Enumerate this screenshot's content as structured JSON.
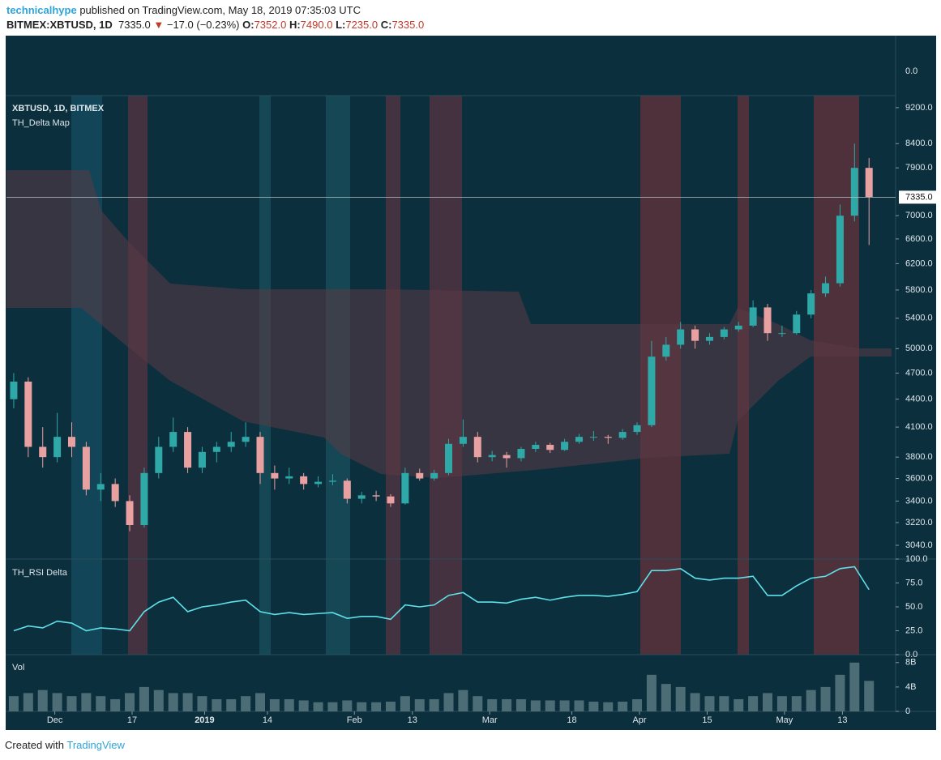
{
  "header": {
    "author": "technicalhype",
    "published": "published on TradingView.com, May 18, 2019 07:35:03 UTC",
    "symbol": "BITMEX:XBTUSD, 1D",
    "price": "7335.0",
    "arrow": "▼",
    "change": "−17.0 (−0.23%)",
    "o_label": "O:",
    "o": "7352.0",
    "h_label": "H:",
    "h": "7490.0",
    "l_label": "L:",
    "l": "7235.0",
    "c_label": "C:",
    "c": "7335.0",
    "top_pane_tick": "0.0",
    "created": "Created with",
    "brand": "TradingView"
  },
  "chart_data": [
    {
      "type": "candlestick",
      "title": "XBTUSD, 1D, BITMEX",
      "subtitle": "TH_Delta Map",
      "log": true,
      "x": [
        0,
        3,
        6,
        9,
        12,
        15,
        18,
        21,
        24,
        27,
        30,
        33,
        36,
        39,
        42,
        45,
        48,
        51,
        54,
        57,
        60,
        63,
        66,
        69,
        72,
        75,
        78,
        81,
        84,
        87,
        90,
        93,
        96,
        99,
        102,
        105,
        108,
        111,
        114,
        117,
        120,
        123,
        126,
        129,
        132,
        135,
        138,
        141,
        144,
        147,
        150,
        153,
        156,
        159,
        162,
        165,
        168,
        171,
        174,
        177
      ],
      "open": [
        4400,
        4600,
        3900,
        3800,
        4000,
        3900,
        3500,
        3550,
        3400,
        3200,
        3650,
        3900,
        4050,
        3700,
        3850,
        3900,
        3950,
        4000,
        3650,
        3600,
        3620,
        3550,
        3570,
        3580,
        3420,
        3450,
        3440,
        3380,
        3650,
        3600,
        3650,
        3930,
        4000,
        3800,
        3820,
        3790,
        3880,
        3920,
        3870,
        3950,
        4000,
        4000,
        3990,
        4050,
        4120,
        4900,
        5050,
        5250,
        5100,
        5150,
        5250,
        5300,
        5550,
        5200,
        5200,
        5450,
        5750,
        5900,
        7000,
        7900
      ],
      "high": [
        4700,
        4650,
        4100,
        4250,
        4150,
        3950,
        3650,
        3600,
        3450,
        3700,
        4000,
        4200,
        4100,
        3900,
        3950,
        4050,
        4150,
        4050,
        3720,
        3700,
        3650,
        3620,
        3640,
        3600,
        3480,
        3490,
        3460,
        3700,
        3690,
        3680,
        3980,
        4180,
        4050,
        3860,
        3850,
        3900,
        3950,
        3940,
        3980,
        4030,
        4060,
        4020,
        4080,
        4150,
        5100,
        5150,
        5350,
        5300,
        5200,
        5280,
        5350,
        5650,
        5600,
        5300,
        5500,
        5800,
        6000,
        7200,
        8400,
        8100
      ],
      "low": [
        4300,
        3800,
        3700,
        3750,
        3800,
        3450,
        3400,
        3350,
        3150,
        3180,
        3600,
        3850,
        3650,
        3650,
        3750,
        3850,
        3900,
        3550,
        3500,
        3550,
        3500,
        3520,
        3540,
        3380,
        3380,
        3400,
        3350,
        3370,
        3580,
        3580,
        3630,
        3900,
        3750,
        3760,
        3700,
        3760,
        3850,
        3840,
        3860,
        3930,
        3960,
        3930,
        3970,
        4020,
        4100,
        4850,
        5000,
        5000,
        5050,
        5120,
        5220,
        5280,
        5100,
        5150,
        5180,
        5400,
        5700,
        5850,
        6900,
        6500
      ],
      "close": [
        4600,
        3900,
        3800,
        4000,
        3900,
        3500,
        3550,
        3400,
        3200,
        3650,
        3900,
        4050,
        3700,
        3850,
        3900,
        3950,
        4000,
        3650,
        3600,
        3620,
        3550,
        3570,
        3580,
        3420,
        3450,
        3440,
        3380,
        3650,
        3600,
        3650,
        3930,
        4000,
        3800,
        3820,
        3790,
        3880,
        3920,
        3870,
        3950,
        4000,
        4000,
        3990,
        4050,
        4120,
        4900,
        5050,
        5250,
        5100,
        5150,
        5250,
        5300,
        5550,
        5200,
        5200,
        5450,
        5750,
        5900,
        7000,
        7900,
        7335
      ],
      "up_color": "#2fa8a8",
      "down_color": "#e8a0a0",
      "xlim": [
        0,
        184
      ],
      "ylim": [
        2936,
        9485
      ],
      "yticks": [
        {
          "value": 9200,
          "label": "9200.0"
        },
        {
          "value": 8400,
          "label": "8400.0"
        },
        {
          "value": 7900,
          "label": "7900.0"
        },
        {
          "value": 7000,
          "label": "7000.0"
        },
        {
          "value": 6600,
          "label": "6600.0"
        },
        {
          "value": 6200,
          "label": "6200.0"
        },
        {
          "value": 5800,
          "label": "5800.0"
        },
        {
          "value": 5400,
          "label": "5400.0"
        },
        {
          "value": 5000,
          "label": "5000.0"
        },
        {
          "value": 4700,
          "label": "4700.0"
        },
        {
          "value": 4400,
          "label": "4400.0"
        },
        {
          "value": 4100,
          "label": "4100.0"
        },
        {
          "value": 3800,
          "label": "3800.0"
        },
        {
          "value": 3600,
          "label": "3600.0"
        },
        {
          "value": 3400,
          "label": "3400.0"
        },
        {
          "value": 3220,
          "label": "3220.0"
        },
        {
          "value": 3040,
          "label": "3040.0"
        }
      ],
      "xticks": [
        {
          "value": 10,
          "label": "Dec"
        },
        {
          "value": 26,
          "label": "17"
        },
        {
          "value": 41,
          "label": "2019"
        },
        {
          "value": 54,
          "label": "14"
        },
        {
          "value": 72,
          "label": "Feb"
        },
        {
          "value": 84,
          "label": "13"
        },
        {
          "value": 100,
          "label": "Mar"
        },
        {
          "value": 117,
          "label": "18"
        },
        {
          "value": 131,
          "label": "Apr"
        },
        {
          "value": 145,
          "label": "15"
        },
        {
          "value": 161,
          "label": "May"
        },
        {
          "value": 173,
          "label": "13"
        }
      ],
      "last_price": 7335,
      "last_price_label": "7335.0"
    },
    {
      "type": "line",
      "title": "TH_RSI Delta",
      "color": "#5ee0e8",
      "x": [
        0,
        3,
        6,
        9,
        12,
        15,
        18,
        21,
        24,
        27,
        30,
        33,
        36,
        39,
        42,
        45,
        48,
        51,
        54,
        57,
        60,
        63,
        66,
        69,
        72,
        75,
        78,
        81,
        84,
        87,
        90,
        93,
        96,
        99,
        102,
        105,
        108,
        111,
        114,
        117,
        120,
        123,
        126,
        129,
        132,
        135,
        138,
        141,
        144,
        147,
        150,
        153,
        156,
        159,
        162,
        165,
        168,
        171,
        174,
        177
      ],
      "values": [
        25,
        30,
        28,
        35,
        33,
        25,
        28,
        27,
        25,
        45,
        55,
        60,
        45,
        50,
        52,
        55,
        57,
        45,
        42,
        44,
        42,
        43,
        44,
        38,
        40,
        40,
        37,
        52,
        50,
        52,
        62,
        65,
        55,
        55,
        54,
        58,
        60,
        57,
        60,
        62,
        62,
        61,
        63,
        66,
        88,
        88,
        90,
        80,
        78,
        80,
        80,
        82,
        62,
        62,
        72,
        80,
        82,
        90,
        92,
        68
      ],
      "xlim": [
        0,
        184
      ],
      "ylim": [
        0,
        100
      ],
      "yticks": [
        {
          "value": 100,
          "label": "100.0"
        },
        {
          "value": 75,
          "label": "75.0"
        },
        {
          "value": 50,
          "label": "50.0"
        },
        {
          "value": 25,
          "label": "25.0"
        },
        {
          "value": 0,
          "label": "0.0"
        }
      ]
    },
    {
      "type": "bar",
      "title": "Vol",
      "color": "#5d7c84",
      "x": [
        0,
        3,
        6,
        9,
        12,
        15,
        18,
        21,
        24,
        27,
        30,
        33,
        36,
        39,
        42,
        45,
        48,
        51,
        54,
        57,
        60,
        63,
        66,
        69,
        72,
        75,
        78,
        81,
        84,
        87,
        90,
        93,
        96,
        99,
        102,
        105,
        108,
        111,
        114,
        117,
        120,
        123,
        126,
        129,
        132,
        135,
        138,
        141,
        144,
        147,
        150,
        153,
        156,
        159,
        162,
        165,
        168,
        171,
        174,
        177
      ],
      "values": [
        2.5,
        3,
        3.5,
        3,
        2.5,
        3,
        2.5,
        2,
        3,
        4,
        3.5,
        3,
        3,
        2.5,
        2,
        2,
        2.5,
        3,
        2,
        2,
        1.8,
        1.5,
        1.5,
        1.8,
        1.5,
        1.5,
        1.6,
        2.5,
        2,
        2,
        3,
        3.5,
        2.5,
        2,
        2,
        2,
        1.8,
        1.8,
        1.8,
        1.8,
        1.6,
        1.5,
        1.6,
        2,
        6,
        4.5,
        4,
        3,
        2.5,
        2.5,
        2,
        2.5,
        3,
        2.5,
        2.5,
        3.5,
        4,
        6,
        8,
        5
      ],
      "xlim": [
        0,
        184
      ],
      "ylim": [
        0,
        9.3
      ],
      "yticks": [
        {
          "value": 8,
          "label": "8B"
        },
        {
          "value": 4,
          "label": "4B"
        },
        0
      ]
    }
  ]
}
